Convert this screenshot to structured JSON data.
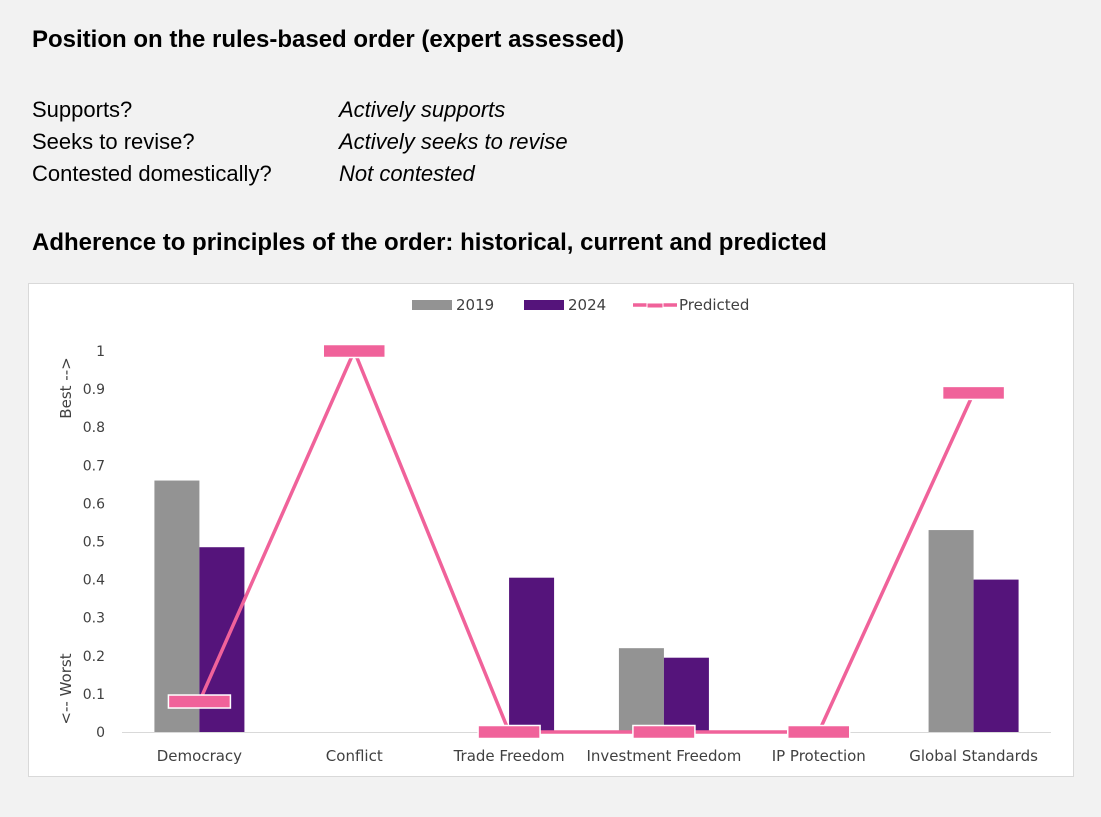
{
  "heading": "Position on the rules-based order (expert assessed)",
  "assessment": [
    {
      "label": "Supports?",
      "value": "Actively supports"
    },
    {
      "label": "Seeks to revise?",
      "value": "Actively seeks to revise"
    },
    {
      "label": "Contested domestically?",
      "value": "Not contested"
    }
  ],
  "chart_heading": "Adherence to principles of the order: historical, current and predicted",
  "chart_data": {
    "type": "bar",
    "categories": [
      "Democracy",
      "Conflict",
      "Trade Freedom",
      "Investment Freedom",
      "IP Protection",
      "Global Standards"
    ],
    "series": [
      {
        "name": "2019",
        "type": "bar",
        "color": "#939393",
        "values": [
          0.66,
          null,
          null,
          0.22,
          null,
          0.53
        ]
      },
      {
        "name": "2024",
        "type": "bar",
        "color": "#55147b",
        "values": [
          0.485,
          null,
          0.405,
          0.195,
          null,
          0.4
        ]
      },
      {
        "name": "Predicted",
        "type": "line-with-markers",
        "color": "#f0629a",
        "values": [
          0.08,
          1.0,
          0.0,
          0.0,
          0.0,
          0.89
        ]
      }
    ],
    "ylim": [
      0,
      1
    ],
    "yticks": [
      "0",
      "0.1",
      "0.2",
      "0.3",
      "0.4",
      "0.5",
      "0.6",
      "0.7",
      "0.8",
      "0.9",
      "1"
    ],
    "ylabel_top": "Best -->",
    "ylabel_bottom": "<-- Worst",
    "legend_position": "top-center"
  }
}
